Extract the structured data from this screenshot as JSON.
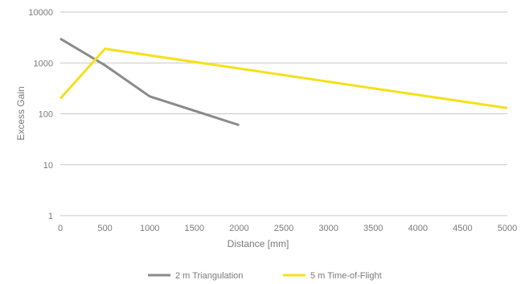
{
  "chart_data": {
    "type": "line",
    "xlabel": "Distance [mm]",
    "ylabel": "Excess Gain",
    "xlim": [
      0,
      5000
    ],
    "ylim": [
      1,
      10000
    ],
    "yscale": "log",
    "grid": true,
    "legend_position": "bottom",
    "x_ticks": [
      "0",
      "500",
      "1000",
      "1500",
      "2000",
      "2500",
      "3000",
      "3500",
      "4000",
      "4500",
      "5000"
    ],
    "y_ticks": [
      "1",
      "10",
      "100",
      "1000",
      "10000"
    ],
    "series": [
      {
        "name": "2 m Triangulation",
        "color": "#8a8a8a",
        "x": [
          0,
          500,
          1000,
          2000
        ],
        "y": [
          3000,
          900,
          220,
          60
        ]
      },
      {
        "name": "5 m Time-of-Flight",
        "color": "#f5e01a",
        "x": [
          0,
          500,
          5000
        ],
        "y": [
          200,
          1900,
          130
        ]
      }
    ]
  }
}
